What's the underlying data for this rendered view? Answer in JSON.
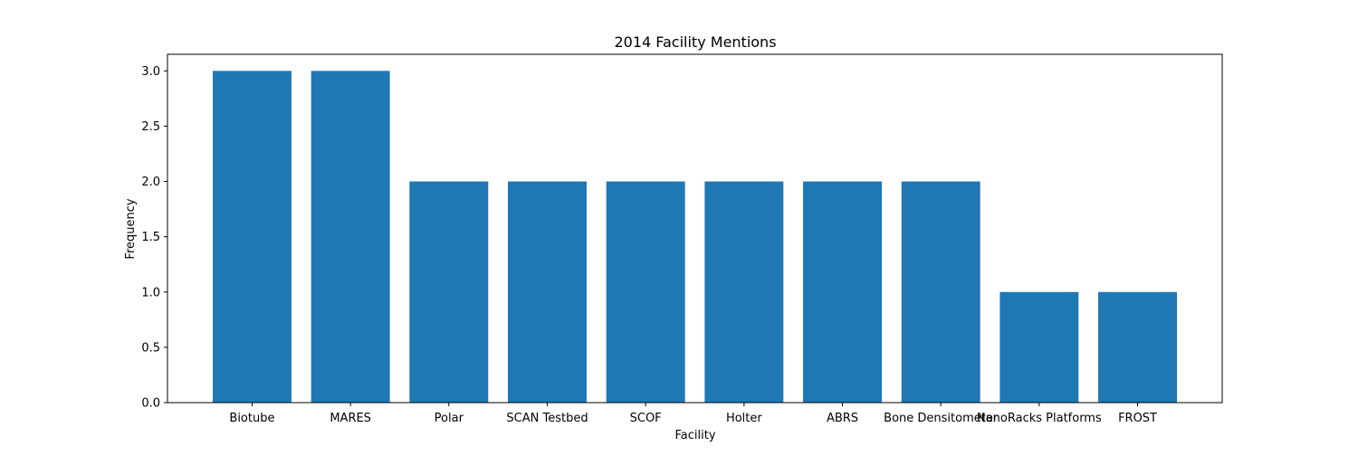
{
  "chart_data": {
    "type": "bar",
    "title": "2014 Facility Mentions",
    "xlabel": "Facility",
    "ylabel": "Frequency",
    "categories": [
      "Biotube",
      "MARES",
      "Polar",
      "SCAN Testbed",
      "SCOF",
      "Holter",
      "ABRS",
      "Bone Densitometer",
      "NanoRacks Platforms",
      "FROST"
    ],
    "values": [
      3,
      3,
      2,
      2,
      2,
      2,
      2,
      2,
      1,
      1
    ],
    "ylim": [
      0,
      3.15
    ],
    "yticks": [
      "0.0",
      "0.5",
      "1.0",
      "1.5",
      "2.0",
      "2.5",
      "3.0"
    ],
    "bar_color": "#1f77b4",
    "grid": false,
    "legend": "none"
  }
}
